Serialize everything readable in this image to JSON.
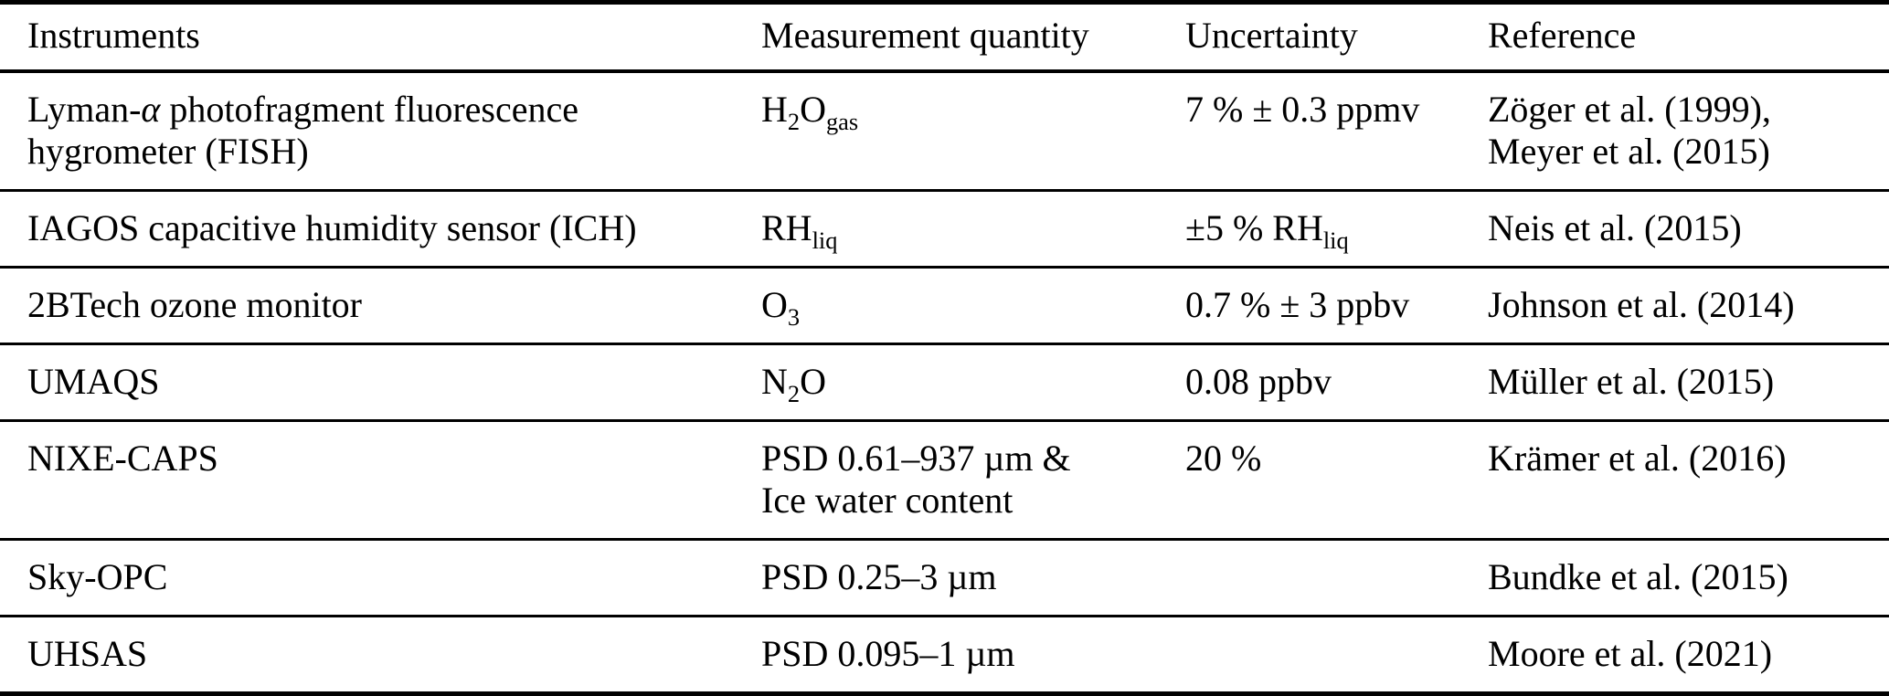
{
  "page": {
    "background": "#ffffff",
    "text_color": "#000000",
    "rule_color": "#000000"
  },
  "table": {
    "columns": [
      {
        "key": "instrument",
        "label": "Instruments"
      },
      {
        "key": "quantity",
        "label": "Measurement quantity"
      },
      {
        "key": "uncertainty",
        "label": "Uncertainty"
      },
      {
        "key": "reference",
        "label": "Reference"
      }
    ],
    "rows": [
      {
        "instrument": [
          {
            "t": "Lyman-"
          },
          {
            "t": "α",
            "i": true
          },
          {
            "t": " photofragment fluorescence"
          },
          {
            "br": true
          },
          {
            "t": "hygrometer (FISH)"
          }
        ],
        "quantity": [
          {
            "t": "H"
          },
          {
            "t": "2",
            "sub": true
          },
          {
            "t": "O"
          },
          {
            "t": "gas",
            "sub": true
          }
        ],
        "uncertainty": [
          {
            "t": "7 % ± 0.3 ppmv"
          }
        ],
        "reference": [
          {
            "t": "Zöger et al. (1999),"
          },
          {
            "br": true
          },
          {
            "t": "Meyer et al. (2015)"
          }
        ]
      },
      {
        "instrument": [
          {
            "t": "IAGOS capacitive humidity sensor (ICH)"
          }
        ],
        "quantity": [
          {
            "t": "RH"
          },
          {
            "t": "liq",
            "sub": true
          }
        ],
        "uncertainty": [
          {
            "t": "±5 % RH"
          },
          {
            "t": "liq",
            "sub": true
          }
        ],
        "reference": [
          {
            "t": "Neis et al. (2015)"
          }
        ]
      },
      {
        "instrument": [
          {
            "t": "2BTech ozone monitor"
          }
        ],
        "quantity": [
          {
            "t": "O"
          },
          {
            "t": "3",
            "sub": true
          }
        ],
        "uncertainty": [
          {
            "t": "0.7 % ± 3 ppbv"
          }
        ],
        "reference": [
          {
            "t": "Johnson et al. (2014)"
          }
        ]
      },
      {
        "instrument": [
          {
            "t": "UMAQS"
          }
        ],
        "quantity": [
          {
            "t": "N"
          },
          {
            "t": "2",
            "sub": true
          },
          {
            "t": "O"
          }
        ],
        "uncertainty": [
          {
            "t": "0.08 ppbv"
          }
        ],
        "reference": [
          {
            "t": "Müller et al. (2015)"
          }
        ]
      },
      {
        "instrument": [
          {
            "t": "NIXE-CAPS"
          }
        ],
        "quantity": [
          {
            "t": "PSD 0.61–937 µm &"
          },
          {
            "br": true
          },
          {
            "t": "Ice water content"
          }
        ],
        "uncertainty": [
          {
            "t": "20 %"
          }
        ],
        "reference": [
          {
            "t": "Krämer et al. (2016)"
          }
        ]
      },
      {
        "instrument": [
          {
            "t": "Sky-OPC"
          }
        ],
        "quantity": [
          {
            "t": "PSD 0.25–3 µm"
          }
        ],
        "uncertainty": [],
        "reference": [
          {
            "t": "Bundke et al. (2015)"
          }
        ]
      },
      {
        "instrument": [
          {
            "t": "UHSAS"
          }
        ],
        "quantity": [
          {
            "t": "PSD 0.095–1 µm"
          }
        ],
        "uncertainty": [],
        "reference": [
          {
            "t": "Moore et al. (2021)"
          }
        ]
      }
    ]
  }
}
